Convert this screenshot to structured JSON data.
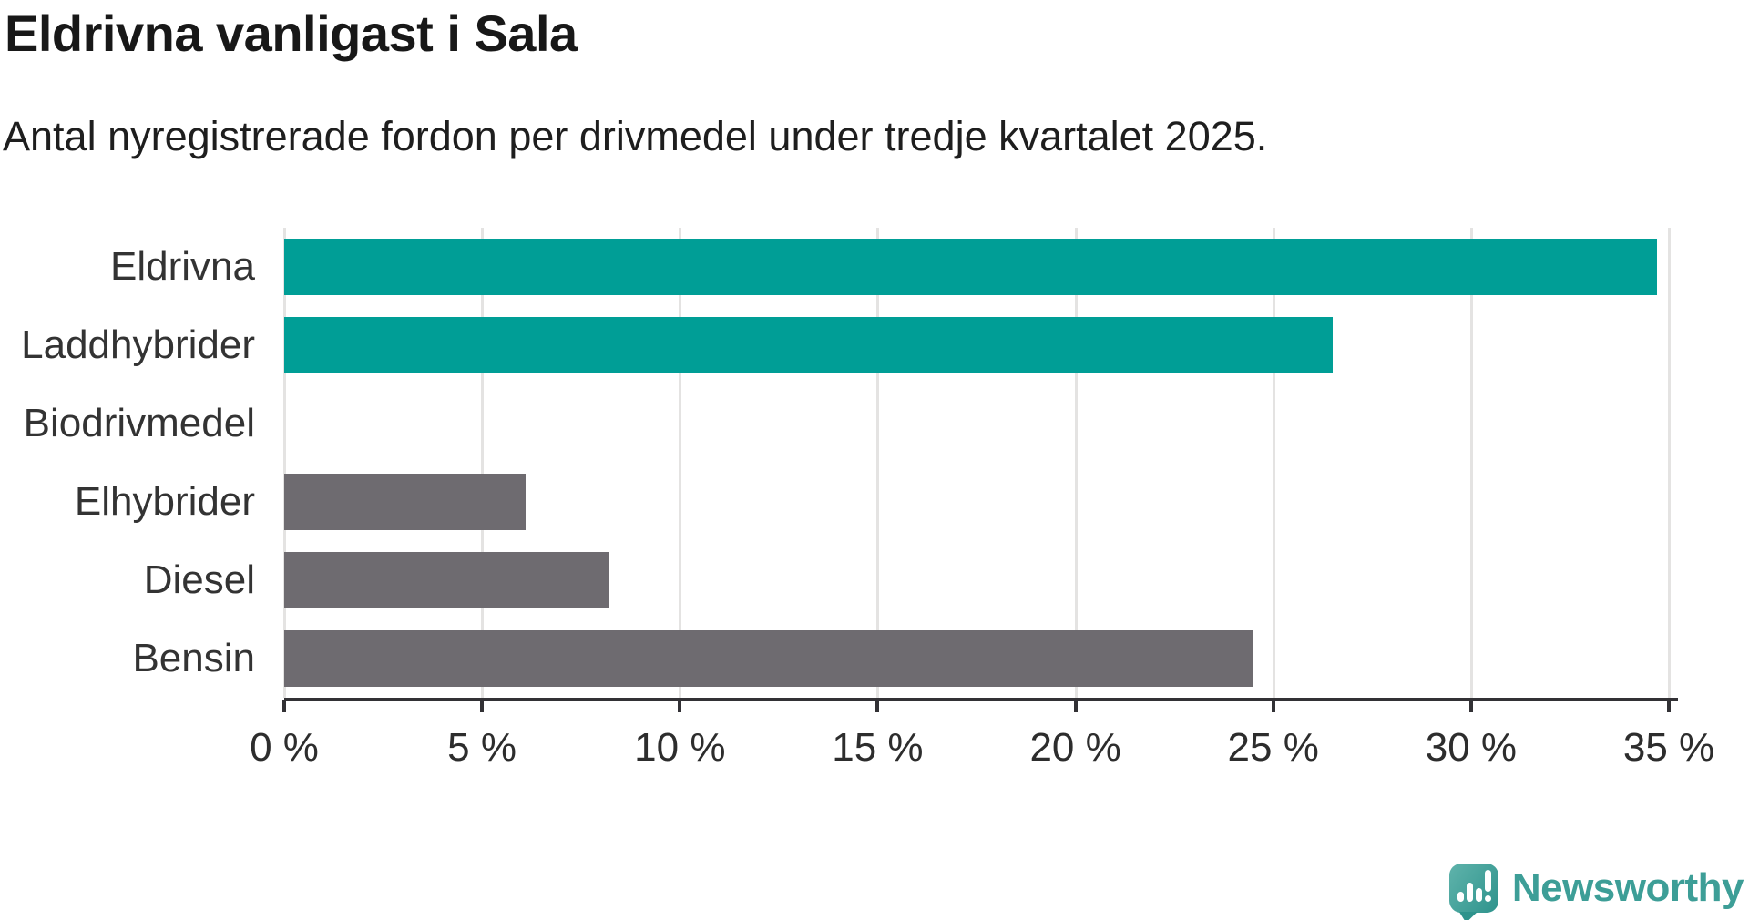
{
  "header": {
    "title": "Eldrivna vanligast i Sala",
    "subtitle": "Antal nyregistrerade fordon per drivmedel under tredje kvartalet 2025."
  },
  "chart_data": {
    "type": "bar",
    "orientation": "horizontal",
    "categories": [
      "Eldrivna",
      "Laddhybrider",
      "Biodrivmedel",
      "Elhybrider",
      "Diesel",
      "Bensin"
    ],
    "values": [
      34.7,
      26.5,
      0,
      6.1,
      8.2,
      24.5
    ],
    "unit": "%",
    "xlim": [
      0,
      35
    ],
    "x_ticks": [
      0,
      5,
      10,
      15,
      20,
      25,
      30,
      35
    ],
    "x_tick_labels": [
      "0 %",
      "5 %",
      "10 %",
      "15 %",
      "20 %",
      "25 %",
      "30 %",
      "35 %"
    ],
    "bar_colors": [
      "#009e96",
      "#009e96",
      "#6e6b70",
      "#6e6b70",
      "#6e6b70",
      "#6e6b70"
    ],
    "highlight_color": "#009e96",
    "default_color": "#6e6b70",
    "grid": true,
    "grid_color": "#e4e3e2",
    "axis_color": "#323135",
    "label_color": "#333333"
  },
  "branding": {
    "logo_text": "Newsworthy",
    "logo_text_color": "#3d9e97",
    "logo_icon_color_light": "#5fb3ab",
    "logo_icon_color_dark": "#2e938c"
  }
}
